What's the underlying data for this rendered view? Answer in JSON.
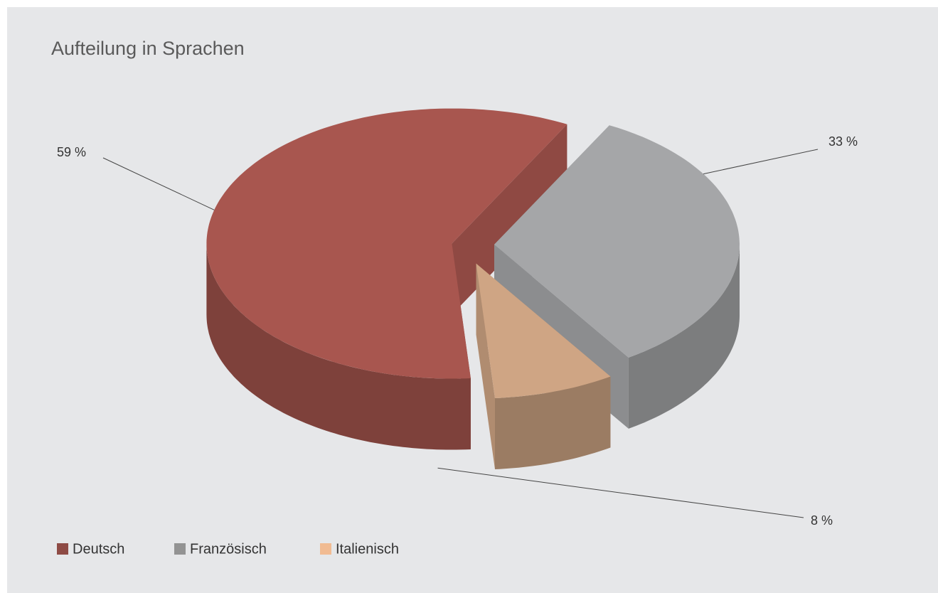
{
  "chart_data": {
    "type": "pie",
    "title": "Aufteilung in Sprachen",
    "categories": [
      "Deutsch",
      "Französisch",
      "Italienisch"
    ],
    "values": [
      59,
      33,
      8
    ],
    "value_labels": [
      "59 %",
      "33 %",
      "8 %"
    ],
    "colors": [
      "#a8564f",
      "#a5a6a8",
      "#cfa584"
    ],
    "legend_colors": [
      "#8e4b45",
      "#939393",
      "#f1bb92"
    ],
    "legend": "bottom-left"
  }
}
